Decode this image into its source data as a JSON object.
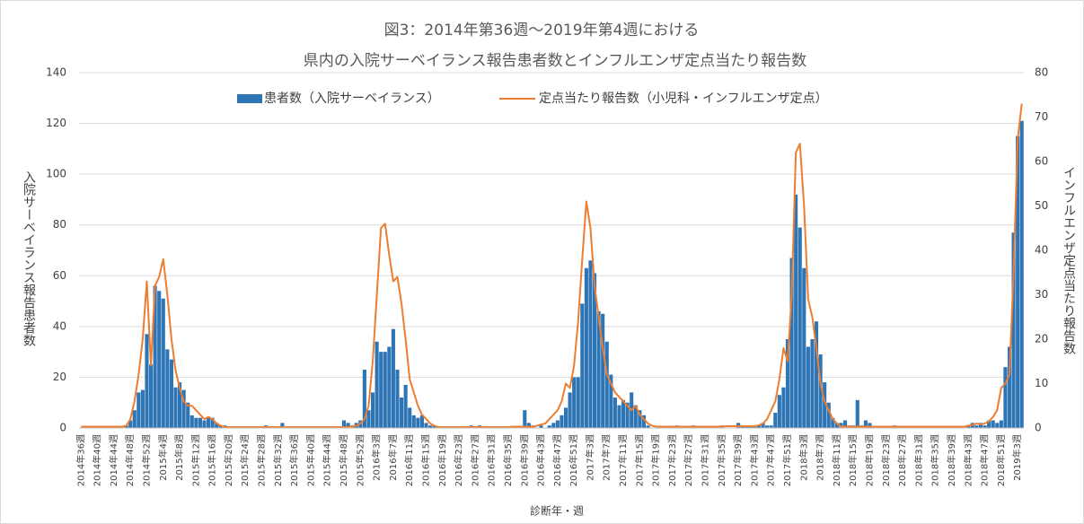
{
  "chart_data": {
    "type": "combo",
    "title": [
      "図3：2014年第36週～2019年第4週における",
      "県内の入院サーベイランス報告患者数とインフルエンザ定点当たり報告数"
    ],
    "xlabel": "診断年・週",
    "ylabel": "入院サーベイランス報告患者数",
    "y2label": "インフルエンザ定点当たり報告数",
    "ylim": [
      0,
      140
    ],
    "yticks": [
      0,
      20,
      40,
      60,
      80,
      100,
      120,
      140
    ],
    "y2lim": [
      0,
      80
    ],
    "y2ticks": [
      0,
      10,
      20,
      30,
      40,
      50,
      60,
      70,
      80
    ],
    "grid": true,
    "legend": "top",
    "categories": [
      "2014年36週",
      null,
      null,
      null,
      "2014年40週",
      null,
      null,
      null,
      "2014年44週",
      null,
      null,
      null,
      "2014年48週",
      null,
      null,
      null,
      "2014年52週",
      null,
      null,
      null,
      "2015年4週",
      null,
      null,
      null,
      "2015年8週",
      null,
      null,
      null,
      "2015年12週",
      null,
      null,
      null,
      "2015年16週",
      null,
      null,
      null,
      "2015年20週",
      null,
      null,
      null,
      "2015年24週",
      null,
      null,
      null,
      "2015年28週",
      null,
      null,
      null,
      "2015年32週",
      null,
      null,
      null,
      "2015年36週",
      null,
      null,
      null,
      "2015年40週",
      null,
      null,
      null,
      "2015年44週",
      null,
      null,
      null,
      "2015年48週",
      null,
      null,
      null,
      "2015年52週",
      null,
      null,
      null,
      "2016年3週",
      null,
      null,
      null,
      "2016年7週",
      null,
      null,
      null,
      "2016年11週",
      null,
      null,
      null,
      "2016年15週",
      null,
      null,
      null,
      "2016年19週",
      null,
      null,
      null,
      "2016年23週",
      null,
      null,
      null,
      "2016年27週",
      null,
      null,
      null,
      "2016年31週",
      null,
      null,
      null,
      "2016年35週",
      null,
      null,
      null,
      "2016年39週",
      null,
      null,
      null,
      "2016年43週",
      null,
      null,
      null,
      "2016年47週",
      null,
      null,
      null,
      "2016年51週",
      null,
      null,
      null,
      "2017年3週",
      null,
      null,
      null,
      "2017年7週",
      null,
      null,
      null,
      "2017年11週",
      null,
      null,
      null,
      "2017年15週",
      null,
      null,
      null,
      "2017年19週",
      null,
      null,
      null,
      "2017年23週",
      null,
      null,
      null,
      "2017年27週",
      null,
      null,
      null,
      "2017年31週",
      null,
      null,
      null,
      "2017年35週",
      null,
      null,
      null,
      "2017年39週",
      null,
      null,
      null,
      "2017年43週",
      null,
      null,
      null,
      "2017年47週",
      null,
      null,
      null,
      "2017年51週",
      null,
      null,
      null,
      "2018年3週",
      null,
      null,
      null,
      "2018年7週",
      null,
      null,
      null,
      "2018年11週",
      null,
      null,
      null,
      "2018年15週",
      null,
      null,
      null,
      "2018年19週",
      null,
      null,
      null,
      "2018年23週",
      null,
      null,
      null,
      "2018年27週",
      null,
      null,
      null,
      "2018年31週",
      null,
      null,
      null,
      "2018年35週",
      null,
      null,
      null,
      "2018年39週",
      null,
      null,
      null,
      "2018年43週",
      null,
      null,
      null,
      "2018年47週",
      null,
      null,
      null,
      "2018年51週",
      null,
      null,
      null,
      "2019年3週",
      null
    ],
    "series": [
      {
        "name": "患者数（入院サーベイランス）",
        "type": "bar",
        "color": "#2e75b6",
        "values": [
          0,
          0,
          0,
          0,
          0,
          0,
          0,
          0,
          0,
          0,
          0,
          1,
          3,
          7,
          14,
          15,
          37,
          25,
          56,
          54,
          51,
          31,
          27,
          16,
          18,
          15,
          10,
          5,
          4,
          4,
          3,
          4,
          4,
          2,
          1,
          1,
          0,
          0,
          0,
          0,
          0,
          0,
          0,
          0,
          0,
          1,
          0,
          0,
          0,
          2,
          0,
          0,
          0,
          0,
          0,
          0,
          0,
          0,
          0,
          0,
          0,
          0,
          0,
          0,
          3,
          2,
          1,
          2,
          3,
          23,
          7,
          14,
          34,
          30,
          30,
          32,
          39,
          23,
          12,
          17,
          8,
          5,
          4,
          5,
          2,
          1,
          1,
          0,
          0,
          0,
          0,
          0,
          0,
          0,
          0,
          1,
          0,
          1,
          0,
          0,
          0,
          0,
          0,
          0,
          0,
          0,
          0,
          0,
          7,
          2,
          1,
          0,
          1,
          0,
          1,
          2,
          3,
          5,
          8,
          14,
          20,
          20,
          49,
          63,
          66,
          61,
          46,
          45,
          34,
          21,
          12,
          9,
          11,
          10,
          14,
          9,
          7,
          5,
          1,
          0,
          0,
          0,
          0,
          0,
          0,
          1,
          0,
          0,
          0,
          1,
          0,
          0,
          0,
          0,
          0,
          0,
          1,
          0,
          0,
          0,
          2,
          1,
          1,
          1,
          1,
          1,
          2,
          1,
          1,
          6,
          13,
          16,
          35,
          67,
          92,
          79,
          63,
          32,
          35,
          42,
          29,
          18,
          10,
          4,
          2,
          2,
          3,
          1,
          1,
          11,
          1,
          3,
          2,
          0,
          0,
          0,
          0,
          0,
          1,
          0,
          0,
          0,
          0,
          0,
          0,
          0,
          0,
          0,
          0,
          0,
          0,
          0,
          0,
          0,
          0,
          0,
          1,
          2,
          1,
          2,
          1,
          3,
          3,
          2,
          3,
          24,
          32,
          77,
          115,
          121
        ]
      },
      {
        "name": "定点当たり報告数（小児科・インフルエンザ定点）",
        "type": "line",
        "axis": "y2",
        "color": "#ed7d31",
        "values": [
          0.3,
          0.3,
          0.3,
          0.3,
          0.3,
          0.3,
          0.3,
          0.3,
          0.3,
          0.3,
          0.3,
          0.5,
          2,
          6,
          12,
          20,
          33,
          14,
          32,
          34,
          38,
          30,
          20,
          13,
          9,
          6,
          5,
          5,
          4,
          3,
          2,
          2.5,
          2,
          1,
          0.5,
          0.2,
          0.2,
          0.2,
          0.2,
          0.2,
          0.2,
          0.2,
          0.2,
          0.2,
          0.2,
          0.2,
          0.2,
          0.2,
          0.2,
          0.2,
          0.2,
          0.2,
          0.2,
          0.2,
          0.2,
          0.2,
          0.2,
          0.2,
          0.2,
          0.2,
          0.2,
          0.2,
          0.2,
          0.2,
          0.2,
          0.2,
          0.3,
          0.5,
          1,
          2,
          5,
          15,
          30,
          45,
          46,
          39,
          33,
          34,
          28,
          20,
          11,
          8,
          5,
          3,
          2,
          1,
          0.5,
          0.2,
          0.2,
          0.2,
          0.2,
          0.2,
          0.2,
          0.2,
          0.2,
          0.2,
          0.2,
          0.2,
          0.2,
          0.2,
          0.2,
          0.2,
          0.2,
          0.2,
          0.2,
          0.3,
          0.3,
          0.3,
          0.3,
          0.3,
          0.3,
          0.5,
          0.8,
          1,
          2,
          3,
          4,
          6,
          10,
          9,
          14,
          24,
          38,
          51,
          45,
          32,
          25,
          18,
          12,
          10,
          8,
          7,
          6,
          5,
          4,
          5,
          3,
          2,
          1,
          0.5,
          0.3,
          0.3,
          0.3,
          0.3,
          0.3,
          0.3,
          0.3,
          0.3,
          0.3,
          0.3,
          0.3,
          0.3,
          0.3,
          0.3,
          0.3,
          0.3,
          0.3,
          0.4,
          0.4,
          0.4,
          0.4,
          0.4,
          0.4,
          0.4,
          0.4,
          0.6,
          1,
          2,
          4,
          6,
          11,
          18,
          15,
          30,
          62,
          64,
          50,
          29,
          25,
          18,
          10,
          6,
          4,
          2,
          1,
          0.3,
          0.3,
          0.3,
          0.3,
          0.3,
          0.3,
          0.3,
          0.3,
          0.3,
          0.3,
          0.3,
          0.3,
          0.3,
          0.3,
          0.3,
          0.3,
          0.3,
          0.3,
          0.3,
          0.3,
          0.3,
          0.3,
          0.3,
          0.3,
          0.3,
          0.3,
          0.3,
          0.3,
          0.3,
          0.3,
          0.3,
          0.5,
          0.7,
          1,
          0.8,
          1,
          1.5,
          2.5,
          4,
          9,
          10,
          12,
          35,
          65,
          73
        ]
      }
    ]
  }
}
